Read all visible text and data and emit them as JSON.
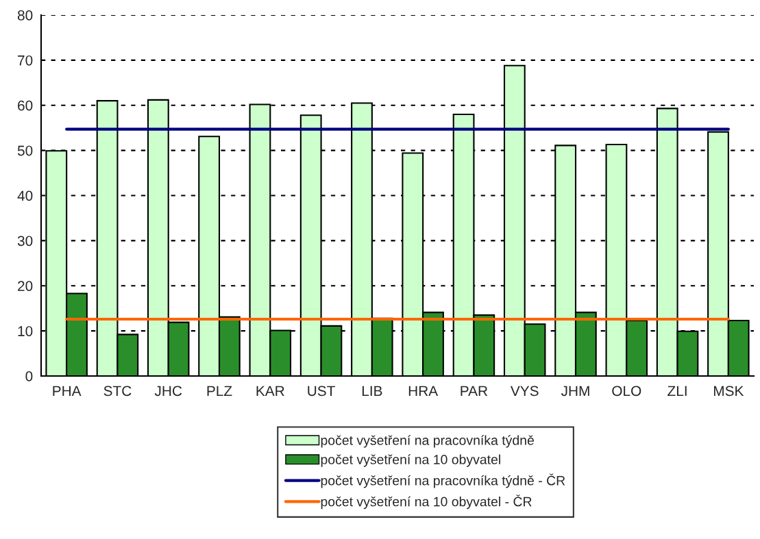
{
  "chart_data": {
    "type": "bar",
    "categories": [
      "PHA",
      "STC",
      "JHC",
      "PLZ",
      "KAR",
      "UST",
      "LIB",
      "HRA",
      "PAR",
      "VYS",
      "JHM",
      "OLO",
      "ZLI",
      "MSK"
    ],
    "series": [
      {
        "name": "počet vyšetření na pracovníka týdně",
        "color": "#ccffcc",
        "values": [
          49.9,
          61.0,
          61.2,
          53.1,
          60.2,
          57.8,
          60.5,
          49.4,
          58.0,
          68.8,
          51.1,
          51.3,
          59.3,
          54.1
        ]
      },
      {
        "name": "počet vyšetření na 10 obyvatel",
        "color": "#2a8f2a",
        "values": [
          18.3,
          9.2,
          11.9,
          13.1,
          10.1,
          11.1,
          12.8,
          14.1,
          13.5,
          11.5,
          14.1,
          12.3,
          9.9,
          12.3
        ]
      }
    ],
    "ref_lines": [
      {
        "axis": "y",
        "value": 54.7,
        "label": "počet vyšetření na pracovníka týdně - ČR",
        "color": "#000080"
      },
      {
        "axis": "y",
        "value": 12.6,
        "label": "počet vyšetření na 10 obyvatel - ČR",
        "color": "#ff6600"
      }
    ],
    "ylim": [
      0,
      80
    ],
    "yticks": [
      0,
      10,
      20,
      30,
      40,
      50,
      60,
      70,
      80
    ],
    "grid": "y",
    "legend": "bottom"
  }
}
